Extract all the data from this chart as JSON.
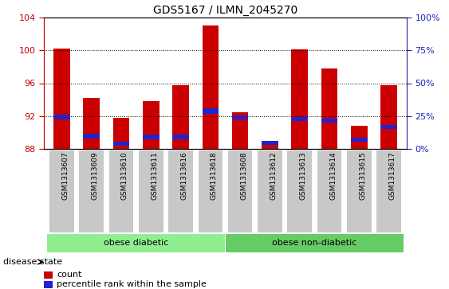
{
  "title": "GDS5167 / ILMN_2045270",
  "samples": [
    "GSM1313607",
    "GSM1313609",
    "GSM1313610",
    "GSM1313611",
    "GSM1313616",
    "GSM1313618",
    "GSM1313608",
    "GSM1313612",
    "GSM1313613",
    "GSM1313614",
    "GSM1313615",
    "GSM1313617"
  ],
  "count_values": [
    100.2,
    94.2,
    91.8,
    93.8,
    95.8,
    103.0,
    92.5,
    88.7,
    100.1,
    97.8,
    90.8,
    95.8
  ],
  "percentile_bottoms": [
    91.6,
    89.3,
    88.4,
    89.2,
    89.2,
    92.3,
    91.6,
    88.5,
    91.4,
    91.2,
    88.9,
    90.4
  ],
  "percentile_heights": [
    0.55,
    0.5,
    0.45,
    0.5,
    0.5,
    0.6,
    0.5,
    0.45,
    0.5,
    0.5,
    0.45,
    0.5
  ],
  "ymin": 88,
  "ymax": 104,
  "yticks_left": [
    88,
    92,
    96,
    100,
    104
  ],
  "yticks_right_vals": [
    0,
    25,
    50,
    75,
    100
  ],
  "yticks_right_labels": [
    "0%",
    "25%",
    "50%",
    "75%",
    "100%"
  ],
  "groups": [
    {
      "label": "obese diabetic",
      "start": 0,
      "end": 6,
      "color": "#90ee90"
    },
    {
      "label": "obese non-diabetic",
      "start": 6,
      "end": 12,
      "color": "#66cc66"
    }
  ],
  "group_label": "disease state",
  "bar_color": "#cc0000",
  "blue_color": "#2222cc",
  "xtick_bg": "#c8c8c8",
  "legend_count_label": "count",
  "legend_percentile_label": "percentile rank within the sample",
  "title_fontsize": 10,
  "left_axis_color": "#cc0000",
  "right_axis_color": "#2222bb"
}
